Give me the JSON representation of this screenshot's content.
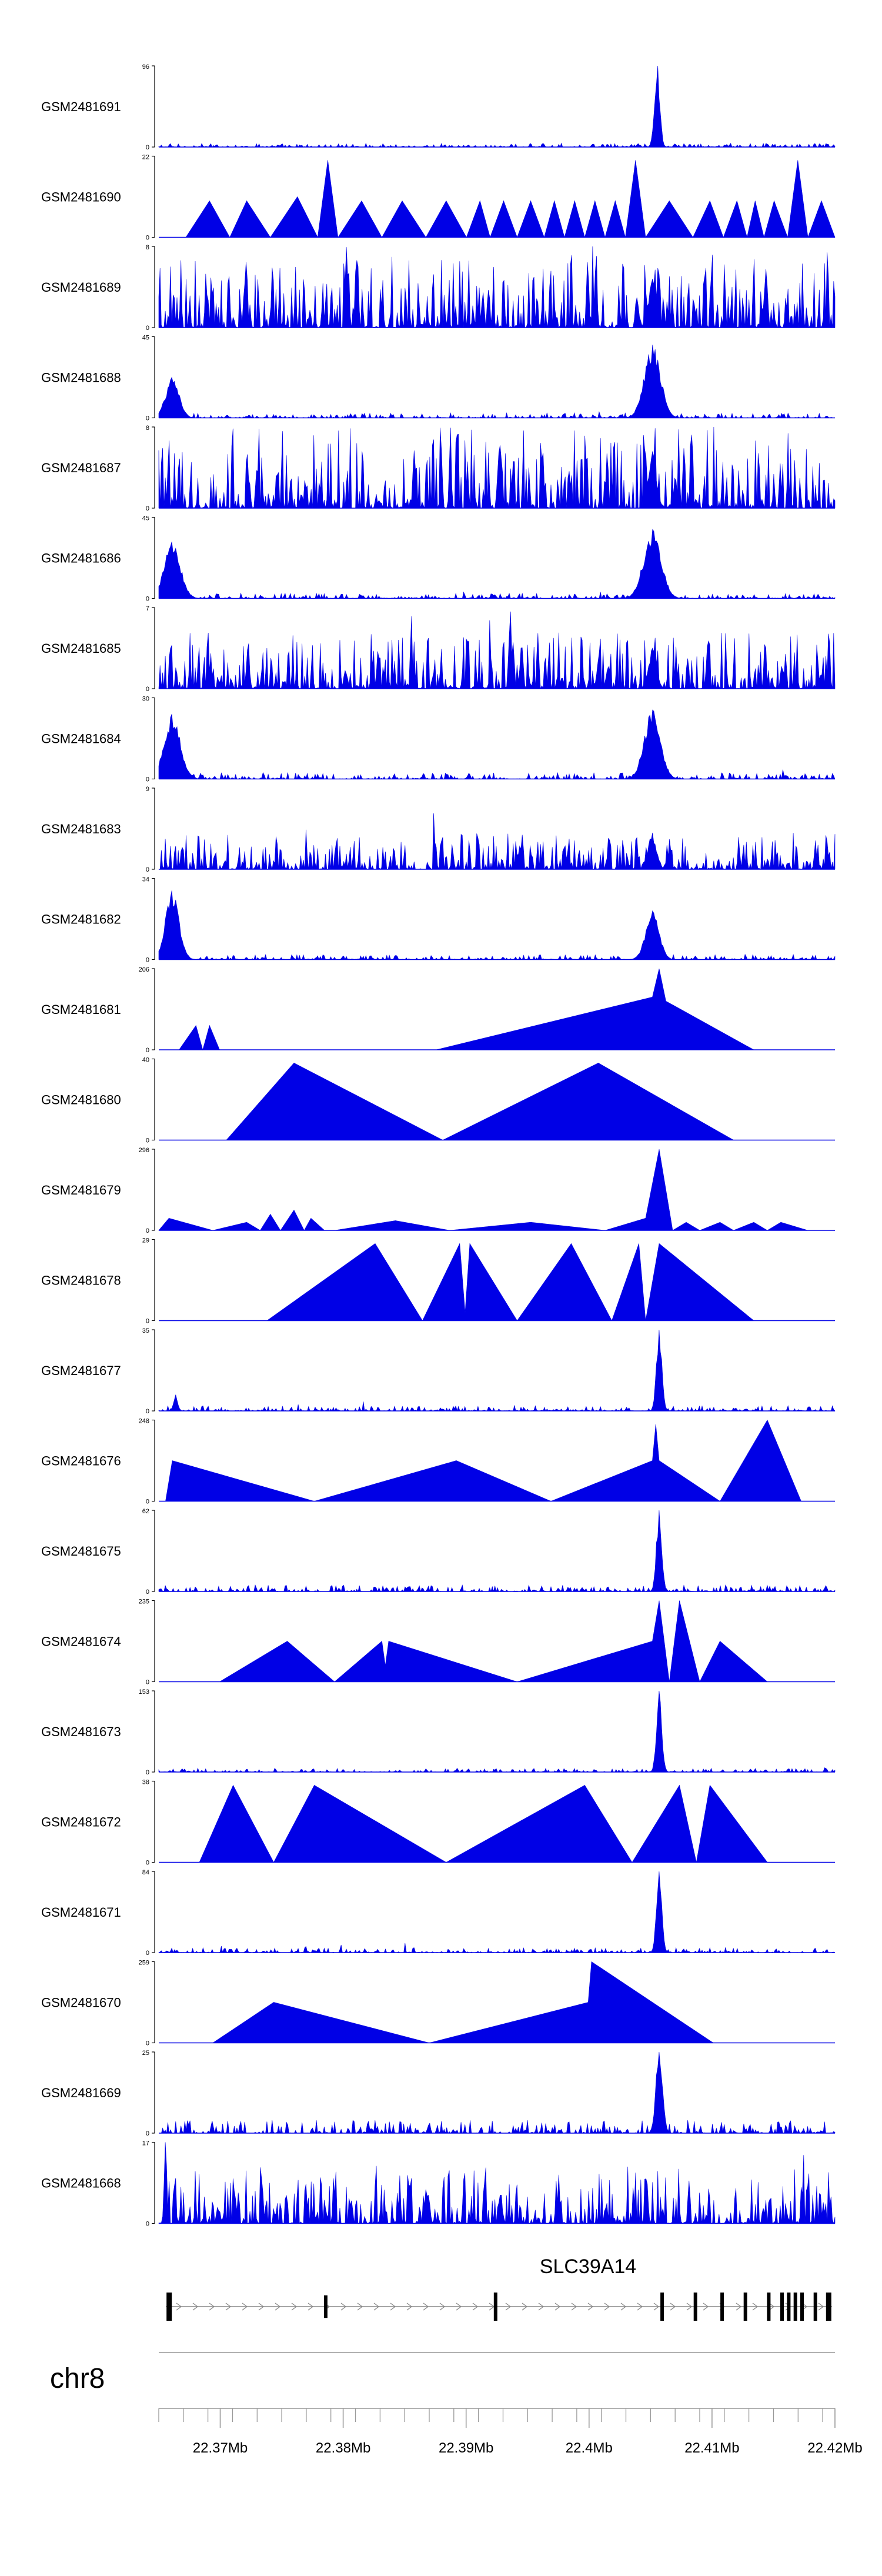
{
  "chart_data": {
    "type": "area",
    "title": "",
    "chromosome": "chr8",
    "gene": "SLC39A14",
    "x_range_mb": [
      22.365,
      22.42
    ],
    "x_axis": {
      "ticks": [
        22.37,
        22.38,
        22.39,
        22.4,
        22.41,
        22.42
      ],
      "labels": [
        "22.37Mb",
        "22.38Mb",
        "22.39Mb",
        "22.4Mb",
        "22.41Mb",
        "22.42Mb"
      ]
    },
    "series": [
      {
        "name": "GSM2481691",
        "ymax": 96,
        "ymax_label": "96",
        "style": "peaky",
        "peaks": [
          [
            0.737,
            1.0,
            0.004
          ]
        ],
        "noise": 0.03
      },
      {
        "name": "GSM2481690",
        "ymax": 22,
        "ymax_label": "22",
        "style": "triangles",
        "points": [
          [
            0.04,
            0
          ],
          [
            0.075,
            0.45
          ],
          [
            0.105,
            0
          ],
          [
            0.13,
            0.45
          ],
          [
            0.165,
            0
          ],
          [
            0.205,
            0.5
          ],
          [
            0.235,
            0
          ],
          [
            0.25,
            0.95
          ],
          [
            0.265,
            0
          ],
          [
            0.3,
            0.45
          ],
          [
            0.33,
            0
          ],
          [
            0.36,
            0.45
          ],
          [
            0.395,
            0
          ],
          [
            0.425,
            0.45
          ],
          [
            0.455,
            0
          ],
          [
            0.475,
            0.45
          ],
          [
            0.49,
            0
          ],
          [
            0.51,
            0.45
          ],
          [
            0.53,
            0
          ],
          [
            0.55,
            0.45
          ],
          [
            0.57,
            0
          ],
          [
            0.585,
            0.45
          ],
          [
            0.6,
            0
          ],
          [
            0.615,
            0.45
          ],
          [
            0.63,
            0
          ],
          [
            0.645,
            0.45
          ],
          [
            0.66,
            0
          ],
          [
            0.675,
            0.45
          ],
          [
            0.69,
            0
          ],
          [
            0.705,
            0.95
          ],
          [
            0.72,
            0
          ],
          [
            0.755,
            0.45
          ],
          [
            0.79,
            0
          ],
          [
            0.815,
            0.45
          ],
          [
            0.835,
            0
          ],
          [
            0.855,
            0.45
          ],
          [
            0.87,
            0
          ],
          [
            0.882,
            0.45
          ],
          [
            0.895,
            0
          ],
          [
            0.91,
            0.45
          ],
          [
            0.93,
            0
          ],
          [
            0.945,
            0.95
          ],
          [
            0.96,
            0
          ],
          [
            0.98,
            0.45
          ],
          [
            1.0,
            0
          ]
        ]
      },
      {
        "name": "GSM2481689",
        "ymax": 8,
        "ymax_label": "8",
        "style": "noisy",
        "peaks": [
          [
            0.73,
            0.6,
            0.006
          ]
        ],
        "noise": 0.45
      },
      {
        "name": "GSM2481688",
        "ymax": 45,
        "ymax_label": "45",
        "style": "peaky",
        "peaks": [
          [
            0.02,
            0.5,
            0.01
          ],
          [
            0.73,
            0.9,
            0.012
          ]
        ],
        "noise": 0.04
      },
      {
        "name": "GSM2481687",
        "ymax": 8,
        "ymax_label": "8",
        "style": "noisy",
        "peaks": [
          [
            0.73,
            0.7,
            0.006
          ]
        ],
        "noise": 0.5
      },
      {
        "name": "GSM2481686",
        "ymax": 45,
        "ymax_label": "45",
        "style": "peaky",
        "peaks": [
          [
            0.02,
            0.7,
            0.012
          ],
          [
            0.73,
            0.85,
            0.013
          ]
        ],
        "noise": 0.04
      },
      {
        "name": "GSM2481685",
        "ymax": 7,
        "ymax_label": "7",
        "style": "noisy",
        "peaks": [
          [
            0.52,
            0.95,
            0.002
          ],
          [
            0.73,
            0.5,
            0.006
          ]
        ],
        "noise": 0.35
      },
      {
        "name": "GSM2481684",
        "ymax": 30,
        "ymax_label": "30",
        "style": "peaky",
        "peaks": [
          [
            0.02,
            0.8,
            0.012
          ],
          [
            0.73,
            0.85,
            0.012
          ]
        ],
        "noise": 0.05
      },
      {
        "name": "GSM2481683",
        "ymax": 9,
        "ymax_label": "9",
        "style": "noisy",
        "peaks": [
          [
            0.73,
            0.45,
            0.006
          ]
        ],
        "noise": 0.22
      },
      {
        "name": "GSM2481682",
        "ymax": 34,
        "ymax_label": "34",
        "style": "peaky",
        "peaks": [
          [
            0.02,
            0.85,
            0.01
          ],
          [
            0.73,
            0.6,
            0.01
          ]
        ],
        "noise": 0.04
      },
      {
        "name": "GSM2481681",
        "ymax": 206,
        "ymax_label": "206",
        "style": "triangles",
        "points": [
          [
            0.03,
            0
          ],
          [
            0.055,
            0.3
          ],
          [
            0.065,
            0
          ],
          [
            0.075,
            0.3
          ],
          [
            0.09,
            0
          ],
          [
            0.41,
            0
          ],
          [
            0.73,
            0.65
          ],
          [
            0.74,
            1.0
          ],
          [
            0.75,
            0.6
          ],
          [
            0.88,
            0
          ]
        ]
      },
      {
        "name": "GSM2481680",
        "ymax": 40,
        "ymax_label": "40",
        "style": "triangles",
        "points": [
          [
            0.1,
            0
          ],
          [
            0.2,
            0.95
          ],
          [
            0.42,
            0
          ],
          [
            0.65,
            0.95
          ],
          [
            0.85,
            0
          ]
        ]
      },
      {
        "name": "GSM2481679",
        "ymax": 296,
        "ymax_label": "296",
        "style": "triangles",
        "points": [
          [
            0.0,
            0
          ],
          [
            0.015,
            0.15
          ],
          [
            0.08,
            0
          ],
          [
            0.13,
            0.1
          ],
          [
            0.15,
            0
          ],
          [
            0.165,
            0.2
          ],
          [
            0.18,
            0
          ],
          [
            0.2,
            0.25
          ],
          [
            0.215,
            0
          ],
          [
            0.225,
            0.15
          ],
          [
            0.245,
            0
          ],
          [
            0.26,
            0
          ],
          [
            0.35,
            0.12
          ],
          [
            0.43,
            0
          ],
          [
            0.55,
            0.1
          ],
          [
            0.66,
            0
          ],
          [
            0.72,
            0.15
          ],
          [
            0.74,
            1.0
          ],
          [
            0.76,
            0
          ],
          [
            0.78,
            0.1
          ],
          [
            0.8,
            0
          ],
          [
            0.83,
            0.1
          ],
          [
            0.85,
            0
          ],
          [
            0.88,
            0.1
          ],
          [
            0.9,
            0
          ],
          [
            0.92,
            0.1
          ],
          [
            0.96,
            0
          ]
        ]
      },
      {
        "name": "GSM2481678",
        "ymax": 29,
        "ymax_label": "29",
        "style": "triangles",
        "points": [
          [
            0.16,
            0
          ],
          [
            0.32,
            0.95
          ],
          [
            0.39,
            0
          ],
          [
            0.445,
            0.95
          ],
          [
            0.453,
            0.1
          ],
          [
            0.46,
            0.95
          ],
          [
            0.53,
            0
          ],
          [
            0.61,
            0.95
          ],
          [
            0.67,
            0
          ],
          [
            0.71,
            0.95
          ],
          [
            0.72,
            0
          ],
          [
            0.74,
            0.95
          ],
          [
            0.88,
            0
          ]
        ]
      },
      {
        "name": "GSM2481677",
        "ymax": 35,
        "ymax_label": "35",
        "style": "peaky",
        "peaks": [
          [
            0.025,
            0.2,
            0.003
          ],
          [
            0.74,
            1.0,
            0.004
          ]
        ],
        "noise": 0.04
      },
      {
        "name": "GSM2481676",
        "ymax": 248,
        "ymax_label": "248",
        "style": "triangles",
        "points": [
          [
            0.01,
            0
          ],
          [
            0.02,
            0.5
          ],
          [
            0.23,
            0
          ],
          [
            0.44,
            0.5
          ],
          [
            0.58,
            0
          ],
          [
            0.73,
            0.5
          ],
          [
            0.735,
            0.95
          ],
          [
            0.74,
            0.5
          ],
          [
            0.83,
            0
          ],
          [
            0.9,
            1.0
          ],
          [
            0.95,
            0
          ]
        ]
      },
      {
        "name": "GSM2481675",
        "ymax": 62,
        "ymax_label": "62",
        "style": "peaky",
        "peaks": [
          [
            0.74,
            1.0,
            0.004
          ]
        ],
        "noise": 0.05
      },
      {
        "name": "GSM2481674",
        "ymax": 235,
        "ymax_label": "235",
        "style": "triangles",
        "points": [
          [
            0.09,
            0
          ],
          [
            0.19,
            0.5
          ],
          [
            0.26,
            0
          ],
          [
            0.33,
            0.5
          ],
          [
            0.335,
            0.2
          ],
          [
            0.34,
            0.5
          ],
          [
            0.53,
            0
          ],
          [
            0.73,
            0.5
          ],
          [
            0.74,
            1.0
          ],
          [
            0.755,
            0
          ],
          [
            0.77,
            1.0
          ],
          [
            0.8,
            0
          ],
          [
            0.83,
            0.5
          ],
          [
            0.9,
            0
          ]
        ]
      },
      {
        "name": "GSM2481673",
        "ymax": 153,
        "ymax_label": "153",
        "style": "peaky",
        "peaks": [
          [
            0.74,
            1.0,
            0.004
          ]
        ],
        "noise": 0.03
      },
      {
        "name": "GSM2481672",
        "ymax": 38,
        "ymax_label": "38",
        "style": "triangles",
        "points": [
          [
            0.06,
            0
          ],
          [
            0.11,
            0.95
          ],
          [
            0.17,
            0
          ],
          [
            0.23,
            0.95
          ],
          [
            0.425,
            0
          ],
          [
            0.63,
            0.95
          ],
          [
            0.7,
            0
          ],
          [
            0.77,
            0.95
          ],
          [
            0.795,
            0
          ],
          [
            0.815,
            0.95
          ],
          [
            0.9,
            0
          ]
        ]
      },
      {
        "name": "GSM2481671",
        "ymax": 84,
        "ymax_label": "84",
        "style": "peaky",
        "peaks": [
          [
            0.74,
            1.0,
            0.004
          ]
        ],
        "noise": 0.04
      },
      {
        "name": "GSM2481670",
        "ymax": 259,
        "ymax_label": "259",
        "style": "triangles",
        "points": [
          [
            0.08,
            0
          ],
          [
            0.17,
            0.5
          ],
          [
            0.4,
            0
          ],
          [
            0.635,
            0.5
          ],
          [
            0.64,
            1.0
          ],
          [
            0.82,
            0
          ]
        ]
      },
      {
        "name": "GSM2481669",
        "ymax": 25,
        "ymax_label": "25",
        "style": "peaky",
        "peaks": [
          [
            0.74,
            1.0,
            0.005
          ]
        ],
        "noise": 0.1
      },
      {
        "name": "GSM2481668",
        "ymax": 17,
        "ymax_label": "17",
        "style": "noisy",
        "peaks": [
          [
            0.01,
            1.0,
            0.002
          ]
        ],
        "noise": 0.35
      }
    ],
    "gene_model": {
      "exons_frac": [
        0.005,
        0.24,
        0.495,
        0.745,
        0.795,
        0.835,
        0.87,
        0.905,
        0.925,
        0.935,
        0.945,
        0.955,
        0.975,
        0.995
      ],
      "exon_heights": [
        1,
        0.8,
        1,
        1,
        1,
        1,
        1,
        1,
        1,
        1,
        1,
        1,
        1,
        1
      ]
    }
  }
}
